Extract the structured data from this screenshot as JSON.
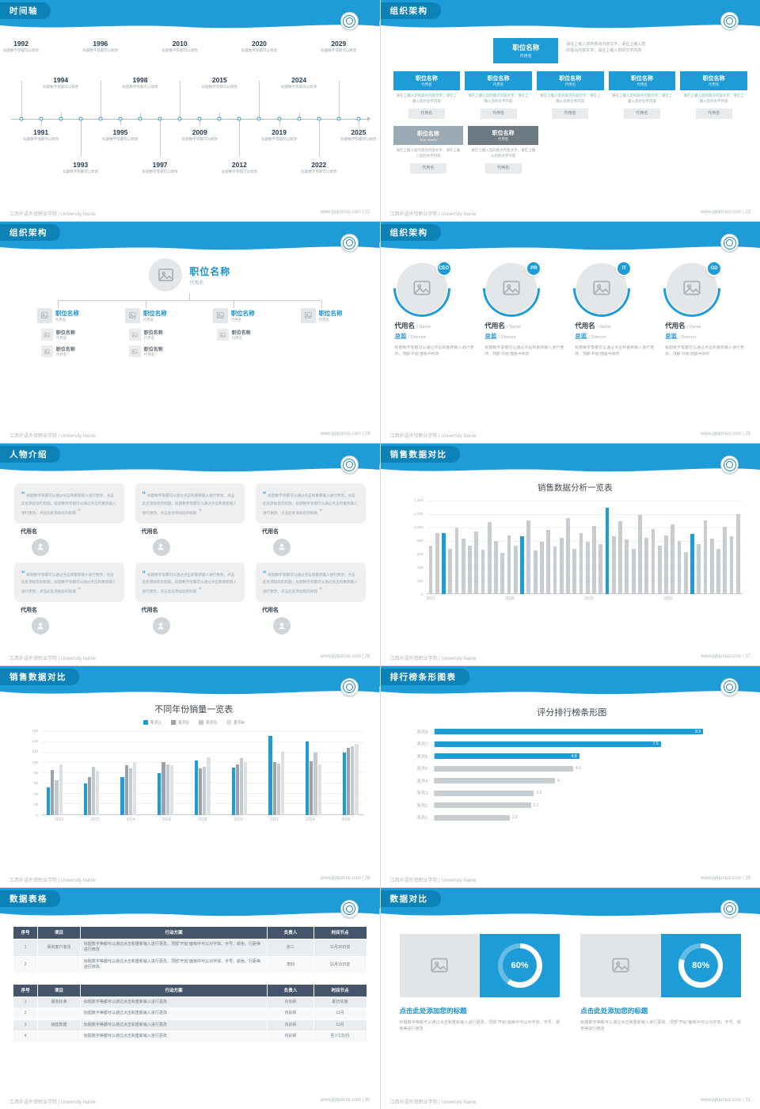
{
  "chrome": {
    "footer_left": "江西外语外贸职业学院 | University Name",
    "footer_site": "www.pptjunius.com"
  },
  "colors": {
    "primary_blue": "#1e9cd7",
    "chip_blue": "#0d82b6",
    "table_header": "#44546a",
    "bar_grey": "#c7ccd1"
  },
  "icons": {
    "quote_open": "“",
    "quote_close": "”",
    "image_placeholder": "picture-frame",
    "person": "user-silhouette"
  },
  "slides": {
    "timeline": {
      "page": "22",
      "title": "时间轴",
      "caption": "标题数字等都可以修改",
      "items": [
        {
          "year": "1992",
          "mod": "top tall"
        },
        {
          "year": "1991",
          "mod": "bottom short"
        },
        {
          "year": "1994",
          "mod": "top short"
        },
        {
          "year": "1993",
          "mod": "bottom tall"
        },
        {
          "year": "1996",
          "mod": "top tall"
        },
        {
          "year": "1995",
          "mod": "bottom short"
        },
        {
          "year": "1998",
          "mod": "top short"
        },
        {
          "year": "1997",
          "mod": "bottom tall"
        },
        {
          "year": "2010",
          "mod": "top tall"
        },
        {
          "year": "2009",
          "mod": "bottom short"
        },
        {
          "year": "2015",
          "mod": "top short"
        },
        {
          "year": "2012",
          "mod": "bottom tall"
        },
        {
          "year": "2020",
          "mod": "top tall"
        },
        {
          "year": "2019",
          "mod": "bottom short"
        },
        {
          "year": "2024",
          "mod": "top short"
        },
        {
          "year": "2022",
          "mod": "bottom tall"
        },
        {
          "year": "2029",
          "mod": "top tall"
        },
        {
          "year": "2025",
          "mod": "bottom short"
        }
      ]
    },
    "org23": {
      "page": "23",
      "title": "组织架构",
      "top_box": {
        "title": "职位名称",
        "sub": "代用名"
      },
      "top_text": "请在上输入您的观点内容文字，请在上输入您的观点内容文字，请在上输入您的文字内容",
      "desc": "请在上输入您的观点内容文字，请在上输入您的文字内容",
      "tag": "代用名",
      "row1": [
        {
          "title": "职位名称",
          "sub": "代用名"
        },
        {
          "title": "职位名称",
          "sub": "代用名"
        },
        {
          "title": "职位名称",
          "sub": "代用名"
        },
        {
          "title": "职位名称",
          "sub": "代用名"
        },
        {
          "title": "职位名称",
          "sub": "代用名"
        }
      ],
      "row2": [
        {
          "title": "职位名称",
          "sub": "Your Name",
          "mod": "grey"
        },
        {
          "title": "职位名称",
          "sub": "代用名",
          "mod": "dark"
        }
      ]
    },
    "org24": {
      "page": "24",
      "title": "组织架构",
      "root": {
        "title": "职位名称",
        "sub": "代用名"
      },
      "branches": [
        {
          "title": "职位名称",
          "sub": "代用名",
          "subs": [
            {
              "title": "职位名称",
              "sub": "代用名"
            },
            {
              "title": "职位名称",
              "sub": "代用名"
            }
          ]
        },
        {
          "title": "职位名称",
          "sub": "代用名",
          "subs": [
            {
              "title": "职位名称",
              "sub": "代用名"
            },
            {
              "title": "职位名称",
              "sub": "代用名"
            }
          ]
        },
        {
          "title": "职位名称",
          "sub": "代用名",
          "subs": [
            {
              "title": "职位名称",
              "sub": "代用名"
            }
          ]
        },
        {
          "title": "职位名称",
          "sub": "代用名",
          "subs": []
        }
      ]
    },
    "org25": {
      "page": "25",
      "title": "组织架构",
      "members": [
        {
          "badge": "CEO",
          "name": "代用名",
          "name_en": "/ Name",
          "role": "总监",
          "role_en": "/ Director",
          "desc": "标题数字等都可以通过点击和重新输入进行更改，顶部“开始”面板中修改"
        },
        {
          "badge": "PR",
          "name": "代用名",
          "name_en": "/ Name",
          "role": "总监",
          "role_en": "/ Director",
          "desc": "标题数字等都可以通过点击和重新输入进行更改，顶部“开始”面板中修改"
        },
        {
          "badge": "IT",
          "name": "代用名",
          "name_en": "/ Name",
          "role": "总监",
          "role_en": "/ Director",
          "desc": "标题数字等都可以通过点击和重新输入进行更改，顶部“开始”面板中修改"
        },
        {
          "badge": "GD",
          "name": "代用名",
          "name_en": "/ Name",
          "role": "总监",
          "role_en": "/ Director",
          "desc": "标题数字等都可以通过点击和重新输入进行更改，顶部“开始”面板中修改"
        }
      ]
    },
    "people": {
      "page": "26",
      "title": "人物介绍",
      "quote": "标题数字等都可以通过点击和重新输入进行更改，点击此处添加您的标题。标题数字等都可以通过点击和重新输入进行更改，点击此处添加您的标题",
      "cards": [
        {
          "name": "代用名"
        },
        {
          "name": "代用名"
        },
        {
          "name": "代用名"
        },
        {
          "name": "代用名"
        },
        {
          "name": "代用名"
        },
        {
          "name": "代用名"
        }
      ]
    },
    "sales1": {
      "page": "27",
      "title": "销售数据对比",
      "chart_data": {
        "type": "bar",
        "title": "销售数据分析一览表",
        "ylim": [
          0,
          1400
        ],
        "yticks": [
          "1,400",
          "1,200",
          "1,000",
          "800",
          "600",
          "400",
          "200",
          "0"
        ],
        "x_groups": [
          "2017",
          "2018",
          "2019",
          "2020"
        ],
        "values": [
          760,
          950,
          950,
          700,
          1040,
          860,
          760,
          980,
          690,
          1120,
          830,
          640,
          910,
          760,
          900,
          1150,
          680,
          820,
          1000,
          740,
          880,
          1180,
          700,
          950,
          820,
          1060,
          780,
          1340,
          900,
          1140,
          850,
          700,
          1230,
          880,
          1010,
          760,
          910,
          1090,
          830,
          650,
          940,
          780,
          1150,
          860,
          700,
          1050,
          900,
          1240
        ],
        "highlight_indices": [
          2,
          14,
          27,
          40
        ],
        "bar_color": "#c7ccd1",
        "highlight_color": "#1e9cd7"
      }
    },
    "sales2": {
      "page": "28",
      "title": "销售数据对比",
      "chart_data": {
        "type": "bar",
        "title": "不同年份销量一览表",
        "categories": [
          "2010",
          "2012",
          "2014",
          "2016",
          "2018",
          "2020",
          "2022",
          "2024",
          "2026"
        ],
        "series": [
          {
            "name": "系列1",
            "color": "#1e9cd7",
            "values": [
              52,
              60,
              72,
              80,
              104,
              90,
              150,
              140,
              118
            ]
          },
          {
            "name": "系列2",
            "color": "#9aa3ab",
            "values": [
              85,
              72,
              95,
              100,
              88,
              96,
              100,
              102,
              128
            ]
          },
          {
            "name": "系列3",
            "color": "#c2c9cf",
            "values": [
              66,
              92,
              88,
              96,
              92,
              108,
              98,
              118,
              130
            ]
          },
          {
            "name": "系列4",
            "color": "#dde1e5",
            "values": [
              96,
              84,
              100,
              94,
              110,
              100,
              120,
              96,
              136
            ]
          }
        ],
        "ylim": [
          0,
          160
        ],
        "yticks": [
          "160",
          "140",
          "120",
          "100",
          "80",
          "60",
          "40",
          "20",
          "0"
        ]
      }
    },
    "ranking": {
      "page": "29",
      "title": "排行榜条形图表",
      "chart_data": {
        "type": "bar-horizontal",
        "title": "评分排行榜条形图",
        "categories": [
          "系列8",
          "系列7",
          "系列6",
          "系列5",
          "系列4",
          "系列3",
          "系列2",
          "系列1"
        ],
        "values": [
          8.9,
          7.5,
          4.8,
          4.6,
          4,
          3.3,
          3.2,
          2.5
        ],
        "value_labels": [
          "8.9",
          "7.5",
          "4.8",
          "4.6",
          "4",
          "3.3",
          "3.2",
          "2.5"
        ],
        "highlight_count": 3,
        "xlim": [
          0,
          10
        ],
        "bar_color": "#c7ccd1",
        "highlight_color": "#1e9cd7"
      }
    },
    "tables": {
      "page": "30",
      "title": "数据表格",
      "table1": {
        "headers": [
          "序号",
          "项目",
          "行动方案",
          "负责人",
          "时间节点"
        ],
        "rows": [
          [
            "1",
            "保有客户激活",
            "标题数字等都可以通过点击和重新输入进行更改，顶部“开始”面板中可以对字体、字号、颜色、行距等进行修改",
            "张三",
            "11月30日前"
          ],
          [
            "2",
            "",
            "标题数字等都可以通过点击和重新输入进行更改，顶部“开始”面板中可以对字体、字号、颜色、行距等进行修改",
            "李四",
            "11月15日前"
          ]
        ]
      },
      "table2": {
        "headers": [
          "序号",
          "项目",
          "行动方案",
          "负责人",
          "时间节点"
        ],
        "rows": [
          [
            "1",
            "服务标准",
            "标题数字等都可以通过点击和重新输入进行更改",
            "内训师",
            "即日实施"
          ],
          [
            "2",
            "",
            "标题数字等都可以通过点击和重新输入进行更改",
            "内训师",
            "11月"
          ],
          [
            "3",
            "销售数据",
            "标题数字等都可以通过点击和重新输入进行更改",
            "内训师",
            "11月"
          ],
          [
            "4",
            "",
            "标题数字等都可以通过点击和重新输入进行更改",
            "内训师",
            "至少1次/月"
          ]
        ]
      }
    },
    "compare": {
      "page": "31",
      "title": "数据对比",
      "cards": [
        {
          "percent": 60,
          "value_label": "60%",
          "heading": "点击此处添加您的标题",
          "desc": "标题数字等都可以通过点击和重新输入进行更改，顶部“开始”面板中可以对字体、字号、颜色等进行修改"
        },
        {
          "percent": 80,
          "value_label": "80%",
          "heading": "点击此处添加您的标题",
          "desc": "标题数字等都可以通过点击和重新输入进行更改，顶部“开始”面板中可以对字体、字号、颜色等进行修改"
        }
      ]
    }
  }
}
